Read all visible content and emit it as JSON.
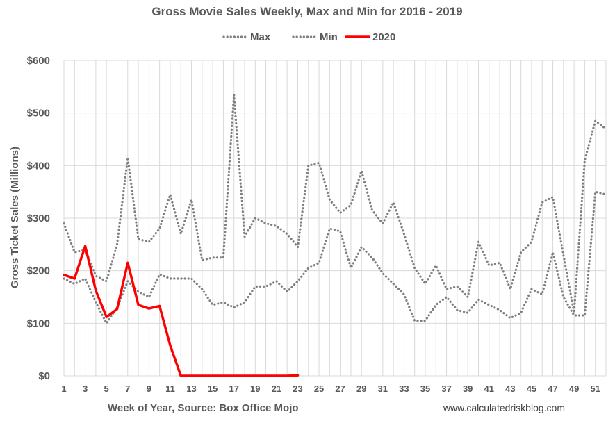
{
  "chart_data": {
    "type": "line",
    "title": "Gross Movie Sales Weekly, Max and Min for 2016 - 2019",
    "xlabel": "Week of Year, Source: Box Office Mojo",
    "ylabel": "Gross Ticket Sales (Millions)",
    "source_note": "www.calculatedriskblog.com",
    "xlim": [
      1,
      52
    ],
    "ylim": [
      0,
      600
    ],
    "y_ticks": [
      0,
      100,
      200,
      300,
      400,
      500,
      600
    ],
    "y_tick_labels": [
      "$0",
      "$100",
      "$200",
      "$300",
      "$400",
      "$500",
      "$600"
    ],
    "x_ticks": [
      1,
      3,
      5,
      7,
      9,
      11,
      13,
      15,
      17,
      19,
      21,
      23,
      25,
      27,
      29,
      31,
      33,
      35,
      37,
      39,
      41,
      43,
      45,
      47,
      49,
      51
    ],
    "grid": true,
    "legend_position": "top-center",
    "series": [
      {
        "name": "Max",
        "style": "dotted",
        "color": "#7f7f7f",
        "x": [
          1,
          2,
          3,
          4,
          5,
          6,
          7,
          8,
          9,
          10,
          11,
          12,
          13,
          14,
          15,
          16,
          17,
          18,
          19,
          20,
          21,
          22,
          23,
          24,
          25,
          26,
          27,
          28,
          29,
          30,
          31,
          32,
          33,
          34,
          35,
          36,
          37,
          38,
          39,
          40,
          41,
          42,
          43,
          44,
          45,
          46,
          47,
          48,
          49,
          50,
          51,
          52
        ],
        "values": [
          290,
          235,
          240,
          190,
          180,
          250,
          415,
          260,
          255,
          280,
          345,
          270,
          335,
          220,
          225,
          225,
          535,
          265,
          300,
          290,
          285,
          270,
          245,
          400,
          405,
          335,
          310,
          325,
          390,
          315,
          290,
          330,
          270,
          205,
          175,
          210,
          165,
          170,
          150,
          255,
          210,
          215,
          165,
          235,
          255,
          330,
          340,
          230,
          120,
          410,
          485,
          470
        ]
      },
      {
        "name": "Min",
        "style": "dotted",
        "color": "#7f7f7f",
        "x": [
          1,
          2,
          3,
          4,
          5,
          6,
          7,
          8,
          9,
          10,
          11,
          12,
          13,
          14,
          15,
          16,
          17,
          18,
          19,
          20,
          21,
          22,
          23,
          24,
          25,
          26,
          27,
          28,
          29,
          30,
          31,
          32,
          33,
          34,
          35,
          36,
          37,
          38,
          39,
          40,
          41,
          42,
          43,
          44,
          45,
          46,
          47,
          48,
          49,
          50,
          51,
          52
        ],
        "values": [
          185,
          175,
          185,
          140,
          100,
          130,
          180,
          160,
          150,
          193,
          185,
          185,
          185,
          165,
          135,
          140,
          130,
          140,
          170,
          170,
          180,
          160,
          180,
          205,
          215,
          280,
          275,
          205,
          245,
          225,
          195,
          175,
          155,
          105,
          105,
          135,
          150,
          125,
          120,
          145,
          135,
          125,
          110,
          120,
          165,
          155,
          235,
          150,
          115,
          115,
          350,
          345
        ]
      },
      {
        "name": "2020",
        "style": "solid",
        "color": "#ff0000",
        "x": [
          1,
          2,
          3,
          4,
          5,
          6,
          7,
          8,
          9,
          10,
          11,
          12,
          13,
          14,
          15,
          16,
          17,
          18,
          19,
          20,
          21,
          22,
          23
        ],
        "values": [
          192,
          185,
          247,
          162,
          112,
          127,
          215,
          135,
          128,
          133,
          58,
          0,
          0,
          0,
          0,
          0,
          0,
          0,
          0,
          0,
          0,
          0,
          1
        ]
      }
    ]
  }
}
